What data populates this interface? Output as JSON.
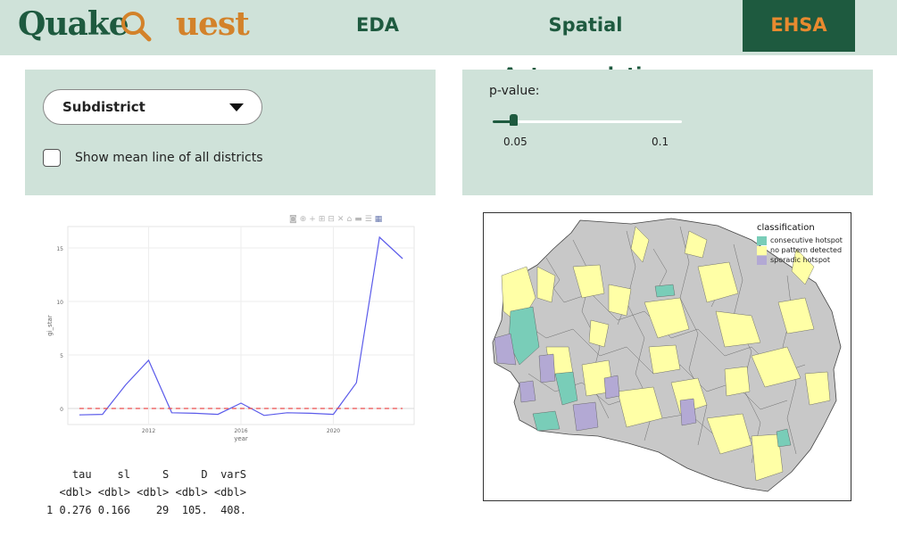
{
  "app": {
    "logo_part1": "Quake",
    "logo_part2": "uest",
    "logo_icon": "magnifier-q-icon"
  },
  "nav": {
    "tabs": [
      {
        "label": "EDA",
        "active": false
      },
      {
        "label": "Spatial Autocorrelation",
        "active": false
      },
      {
        "label": "EHSA",
        "active": true
      }
    ]
  },
  "colors": {
    "brand_green": "#1e5a3f",
    "brand_orange": "#e88a2f",
    "panel_bg": "#cfe2d9"
  },
  "controls": {
    "select_value": "Subdistrict",
    "checkbox_label": "Show mean line of all districts",
    "checkbox_checked": false,
    "slider_label": "p-value:",
    "slider_value": 0.05,
    "slider_ticks": [
      "0.05",
      "0.1"
    ]
  },
  "plot_toolbar": {
    "icons": [
      "camera-icon",
      "zoom-icon",
      "pan-icon",
      "zoom-in-icon",
      "zoom-out-icon",
      "autoscale-icon",
      "home-icon",
      "spike-icon",
      "compare-icon",
      "plotly-logo-icon"
    ]
  },
  "chart_data": {
    "type": "line",
    "xlabel": "year",
    "ylabel": "gi_star",
    "xlim": [
      2008.5,
      2023.5
    ],
    "ylim": [
      -1.5,
      17
    ],
    "x_ticks": [
      "2012",
      "2016",
      "2020"
    ],
    "y_ticks": [
      "0",
      "5",
      "10",
      "15"
    ],
    "grid": true,
    "series": [
      {
        "style": "solid",
        "color": "#5b5bea",
        "x": [
          2009,
          2010,
          2011,
          2012,
          2013,
          2014,
          2015,
          2016,
          2017,
          2018,
          2019,
          2020,
          2021,
          2022,
          2023
        ],
        "values": [
          -0.6,
          -0.55,
          2.2,
          4.5,
          -0.4,
          -0.45,
          -0.55,
          0.5,
          -0.65,
          -0.4,
          -0.45,
          -0.55,
          2.4,
          16,
          14
        ]
      },
      {
        "style": "dashed",
        "color": "#ea4a4a",
        "x": [
          2009,
          2023
        ],
        "values": [
          0.0,
          0.0
        ]
      }
    ]
  },
  "stats": {
    "header": "    tau    sl     S     D  varS",
    "types": "  <dbl> <dbl> <dbl> <dbl> <dbl>",
    "row": "1 0.276 0.166    29  105.  408."
  },
  "map": {
    "legend_title": "classification",
    "legend": [
      {
        "label": "consecutive hotspot",
        "color": "#79cdb8"
      },
      {
        "label": "no pattern detected",
        "color": "#ffffa6"
      },
      {
        "label": "sporadic hotspot",
        "color": "#b3a9d4"
      }
    ],
    "base_color": "#c8c8c8"
  }
}
